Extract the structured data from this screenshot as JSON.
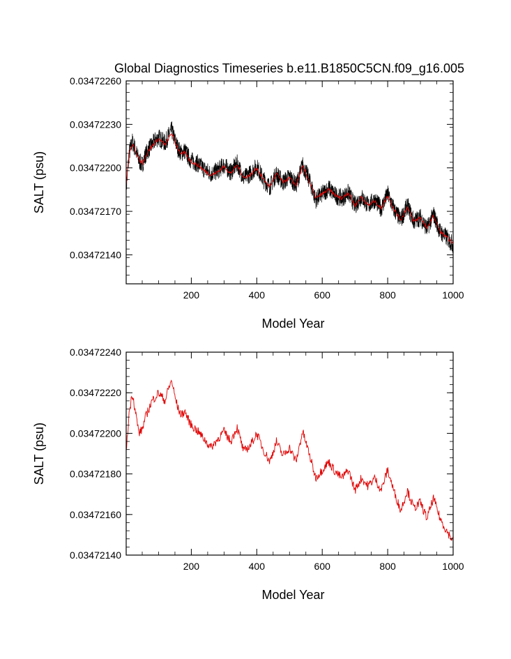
{
  "figure": {
    "title": "Global Diagnostics Timeseries b.e11.B1850C5CN.f09_g16.005"
  },
  "chart_data": [
    {
      "type": "line",
      "title": "Global Diagnostics Timeseries b.e11.B1850C5CN.f09_g16.005",
      "xlabel": "Model Year",
      "ylabel": "SALT (psu)",
      "xlim": [
        1,
        1000
      ],
      "ylim": [
        0.0347212,
        0.0347226
      ],
      "xticks": [
        200,
        400,
        600,
        800,
        1000
      ],
      "xtick_labels": [
        "200",
        "400",
        "600",
        "800",
        "1000"
      ],
      "yticks": [
        0.0347214,
        0.0347217,
        0.034722,
        0.0347223,
        0.0347226
      ],
      "ytick_labels": [
        "0.03472140",
        "0.03472170",
        "0.03472200",
        "0.03472230",
        "0.03472260"
      ],
      "grid": false,
      "series": [
        {
          "color": "#000000",
          "x": [
            1,
            10,
            20,
            30,
            40,
            50,
            60,
            70,
            80,
            90,
            100,
            110,
            120,
            130,
            140,
            150,
            160,
            170,
            180,
            190,
            200,
            220,
            240,
            260,
            280,
            300,
            320,
            340,
            360,
            380,
            400,
            420,
            440,
            460,
            480,
            500,
            520,
            540,
            560,
            580,
            600,
            620,
            640,
            660,
            680,
            700,
            720,
            740,
            760,
            780,
            800,
            820,
            840,
            860,
            880,
            900,
            920,
            940,
            960,
            980,
            1000
          ],
          "values": [
            0.03472185,
            0.0347221,
            0.03472218,
            0.03472212,
            0.03472205,
            0.03472202,
            0.03472209,
            0.03472213,
            0.03472216,
            0.03472219,
            0.03472221,
            0.03472219,
            0.03472217,
            0.03472222,
            0.03472226,
            0.03472219,
            0.03472213,
            0.0347221,
            0.03472212,
            0.03472208,
            0.03472205,
            0.03472203,
            0.03472199,
            0.03472196,
            0.03472198,
            0.03472202,
            0.03472197,
            0.03472203,
            0.03472193,
            0.03472196,
            0.03472201,
            0.03472192,
            0.03472187,
            0.03472196,
            0.0347219,
            0.03472194,
            0.03472188,
            0.03472202,
            0.03472192,
            0.03472178,
            0.03472182,
            0.03472186,
            0.03472181,
            0.03472179,
            0.03472183,
            0.03472174,
            0.0347218,
            0.03472174,
            0.03472178,
            0.03472172,
            0.03472182,
            0.03472171,
            0.03472164,
            0.03472174,
            0.03472163,
            0.03472166,
            0.03472158,
            0.03472168,
            0.03472156,
            0.03472152,
            0.03472147
          ]
        },
        {
          "color": "#e00000",
          "x": [
            1,
            10,
            20,
            30,
            40,
            50,
            60,
            70,
            80,
            90,
            100,
            110,
            120,
            130,
            140,
            150,
            160,
            170,
            180,
            190,
            200,
            220,
            240,
            260,
            280,
            300,
            320,
            340,
            360,
            380,
            400,
            420,
            440,
            460,
            480,
            500,
            520,
            540,
            560,
            580,
            600,
            620,
            640,
            660,
            680,
            700,
            720,
            740,
            760,
            780,
            800,
            820,
            840,
            860,
            880,
            900,
            920,
            940,
            960,
            980,
            1000
          ],
          "values": [
            0.03472188,
            0.0347221,
            0.03472216,
            0.03472212,
            0.03472206,
            0.03472203,
            0.03472208,
            0.03472212,
            0.03472215,
            0.03472218,
            0.0347222,
            0.03472218,
            0.03472216,
            0.0347222,
            0.03472224,
            0.03472218,
            0.03472213,
            0.03472209,
            0.03472211,
            0.03472207,
            0.03472204,
            0.03472202,
            0.03472198,
            0.03472195,
            0.03472197,
            0.03472201,
            0.03472196,
            0.03472202,
            0.03472193,
            0.03472195,
            0.034722,
            0.03472192,
            0.03472187,
            0.03472196,
            0.0347219,
            0.03472193,
            0.03472188,
            0.03472201,
            0.03472191,
            0.03472179,
            0.03472182,
            0.03472185,
            0.03472181,
            0.03472179,
            0.03472183,
            0.03472174,
            0.0347218,
            0.03472174,
            0.03472177,
            0.03472172,
            0.03472181,
            0.03472171,
            0.03472164,
            0.03472173,
            0.03472163,
            0.03472166,
            0.03472158,
            0.03472167,
            0.03472156,
            0.03472152,
            0.03472148
          ]
        }
      ]
    },
    {
      "type": "line",
      "xlabel": "Model Year",
      "ylabel": "SALT (psu)",
      "xlim": [
        1,
        1000
      ],
      "ylim": [
        0.0347214,
        0.0347224
      ],
      "xticks": [
        200,
        400,
        600,
        800,
        1000
      ],
      "xtick_labels": [
        "200",
        "400",
        "600",
        "800",
        "1000"
      ],
      "yticks": [
        0.0347214,
        0.0347216,
        0.0347218,
        0.034722,
        0.0347222,
        0.0347224
      ],
      "ytick_labels": [
        "0.03472140",
        "0.03472160",
        "0.03472180",
        "0.03472200",
        "0.03472220",
        "0.03472240"
      ],
      "grid": false,
      "series": [
        {
          "color": "#e00000",
          "x": [
            1,
            10,
            20,
            30,
            40,
            50,
            60,
            70,
            80,
            90,
            100,
            110,
            120,
            130,
            140,
            150,
            160,
            170,
            180,
            190,
            200,
            220,
            240,
            260,
            280,
            300,
            320,
            340,
            360,
            380,
            400,
            420,
            440,
            460,
            480,
            500,
            520,
            540,
            560,
            580,
            600,
            620,
            640,
            660,
            680,
            700,
            720,
            740,
            760,
            780,
            800,
            820,
            840,
            860,
            880,
            900,
            920,
            940,
            960,
            980,
            1000
          ],
          "values": [
            0.0347219,
            0.0347221,
            0.0347222,
            0.0347221,
            0.034722,
            0.03472202,
            0.03472208,
            0.03472212,
            0.03472216,
            0.03472218,
            0.0347222,
            0.03472218,
            0.03472216,
            0.03472222,
            0.03472226,
            0.03472218,
            0.03472212,
            0.03472209,
            0.03472211,
            0.03472207,
            0.03472204,
            0.03472201,
            0.03472197,
            0.03472193,
            0.03472197,
            0.03472201,
            0.03472196,
            0.03472203,
            0.03472191,
            0.03472194,
            0.034722,
            0.03472192,
            0.03472186,
            0.03472196,
            0.03472189,
            0.03472193,
            0.03472186,
            0.03472201,
            0.0347219,
            0.03472178,
            0.03472182,
            0.03472186,
            0.03472181,
            0.03472178,
            0.03472182,
            0.03472172,
            0.03472178,
            0.03472174,
            0.03472178,
            0.03472172,
            0.03472182,
            0.03472171,
            0.03472162,
            0.03472172,
            0.03472163,
            0.03472166,
            0.03472158,
            0.03472168,
            0.03472158,
            0.03472152,
            0.03472147
          ]
        }
      ]
    }
  ]
}
